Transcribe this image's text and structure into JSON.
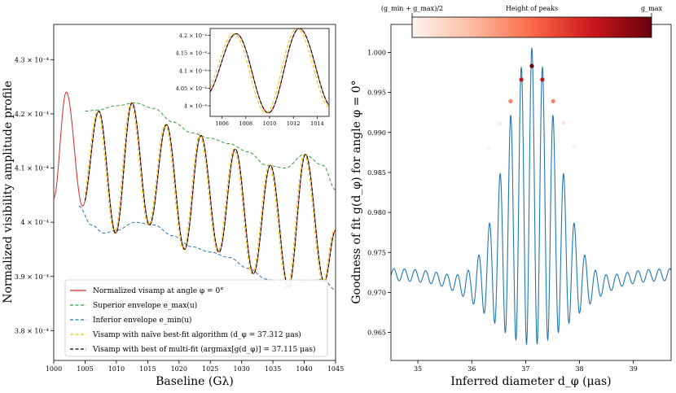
{
  "chart_data": [
    {
      "type": "line",
      "title": "",
      "xlabel": "Baseline (Gλ)",
      "ylabel": "Normalized visibility amplitude profile",
      "xlim": [
        1000,
        1045
      ],
      "ylim": [
        0.0003745,
        0.0004365
      ],
      "xticks": [
        "1000",
        "1005",
        "1010",
        "1015",
        "1020",
        "1025",
        "1030",
        "1035",
        "1040",
        "1045"
      ],
      "yticks": [
        {
          "value": 0.00038,
          "label": "3.8 × 10⁻⁴"
        },
        {
          "value": 0.00039,
          "label": "3.9 × 10⁻⁴"
        },
        {
          "value": 0.0004,
          "label": "4 × 10⁻⁴"
        },
        {
          "value": 0.00041,
          "label": "4.1 × 10⁻⁴"
        },
        {
          "value": 0.00042,
          "label": "4.2 × 10⁻⁴"
        },
        {
          "value": 0.00043,
          "label": "4.3 × 10⁻⁴"
        }
      ],
      "legend_position": "lower-center",
      "series": [
        {
          "name": "Normalized visamp at angle φ = 0°",
          "color": "#d62728",
          "style": "solid"
        },
        {
          "name": "Superior envelope e_max(u)",
          "color": "#2ca02c",
          "style": "dashed",
          "x": [
            1005,
            1007,
            1010,
            1013,
            1016,
            1019,
            1022,
            1025,
            1028,
            1031,
            1034,
            1037,
            1040,
            1043,
            1045
          ],
          "y": [
            0.0004205,
            0.0004207,
            0.0004215,
            0.000422,
            0.000421,
            0.0004185,
            0.0004165,
            0.0004155,
            0.0004145,
            0.000413,
            0.0004105,
            0.00041,
            0.0004125,
            0.0004105,
            0.000406
          ]
        },
        {
          "name": "Inferior envelope e_min(u)",
          "color": "#1f77b4",
          "style": "dashed",
          "x": [
            1004,
            1006,
            1008,
            1010,
            1013,
            1016,
            1019,
            1022,
            1025,
            1028,
            1031,
            1034,
            1037,
            1040,
            1043,
            1045
          ],
          "y": [
            0.000403,
            0.0003995,
            0.000398,
            0.0003985,
            0.0004,
            0.0003995,
            0.0003975,
            0.0003955,
            0.0003945,
            0.0003935,
            0.0003915,
            0.0003895,
            0.000388,
            0.000389,
            0.0003895,
            0.0003875
          ]
        },
        {
          "name": "Visamp with naïve best-fit algorithm (d_φ = 37.312 μas)",
          "color": "#e6c700",
          "style": "dashed"
        },
        {
          "name": "Visamp with best of multi-fit (argmax[g(d_φ)] = 37.115 μas)",
          "color": "#000000",
          "style": "dashed"
        }
      ],
      "oscillation_peaks": {
        "x": [
          1002,
          1007.2,
          1012.5,
          1018,
          1023.5,
          1029,
          1034.6,
          1040.2
        ],
        "y": [
          0.000424,
          0.0004205,
          0.000422,
          0.000418,
          0.000416,
          0.0004135,
          0.0004105,
          0.0004125
        ]
      },
      "oscillation_troughs": {
        "x": [
          1004.6,
          1009.9,
          1015.3,
          1020.9,
          1026.4,
          1031.9,
          1037.5,
          1043.2
        ],
        "y": [
          0.000403,
          0.000398,
          0.0003995,
          0.000395,
          0.0003945,
          0.0003905,
          0.000388,
          0.000389
        ]
      },
      "inset": {
        "xlim": [
          1005,
          1015
        ],
        "ylim": [
          0.000397,
          0.000422
        ],
        "xticks": [
          "1006",
          "1008",
          "1010",
          "1012",
          "1014"
        ],
        "yticks": [
          {
            "value": 0.0004,
            "label": "4 × 10⁻⁴"
          },
          {
            "value": 0.000405,
            "label": "4.05 × 10⁻⁴"
          },
          {
            "value": 0.00041,
            "label": "4.1 × 10⁻⁴"
          },
          {
            "value": 0.000415,
            "label": "4.15 × 10⁻⁴"
          },
          {
            "value": 0.00042,
            "label": "4.2 × 10⁻⁴"
          }
        ]
      }
    },
    {
      "type": "line",
      "title": "",
      "xlabel": "Inferred diameter d_φ (μas)",
      "ylabel": "Goodness of fit g(d_φ) for angle φ = 0°",
      "xlim": [
        34.5,
        39.7
      ],
      "ylim": [
        0.9615,
        1.0035
      ],
      "xticks": [
        "35",
        "36",
        "37",
        "38",
        "39"
      ],
      "yticks": [
        "0.965",
        "0.970",
        "0.975",
        "0.980",
        "0.985",
        "0.990",
        "0.995",
        "1.000"
      ],
      "line_color": "#1f77b4",
      "center": 37.115,
      "peak_spacing": 0.197,
      "peak_values": [
        {
          "x": 36.32,
          "y": 0.9881
        },
        {
          "x": 36.52,
          "y": 0.9911
        },
        {
          "x": 36.72,
          "y": 0.9939
        },
        {
          "x": 36.92,
          "y": 0.9966
        },
        {
          "x": 37.115,
          "y": 0.9983
        },
        {
          "x": 37.31,
          "y": 0.9966
        },
        {
          "x": 37.51,
          "y": 0.9939
        },
        {
          "x": 37.71,
          "y": 0.9912
        },
        {
          "x": 37.9,
          "y": 0.9882
        }
      ],
      "colorbar": {
        "title": "Height of peaks",
        "min_label": "(g_min + g_max)/2",
        "max_label": "g_max",
        "colormap": "Reds"
      }
    }
  ]
}
